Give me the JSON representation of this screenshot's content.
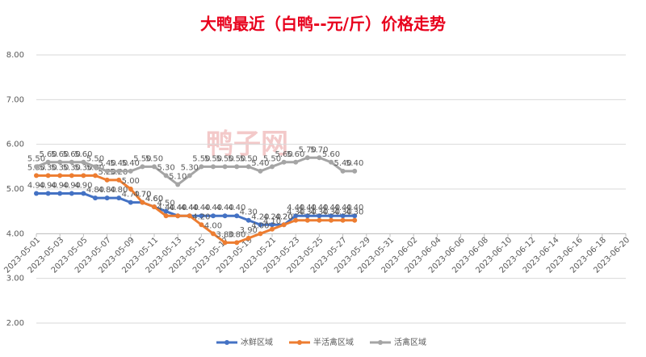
{
  "chart_data": {
    "type": "line",
    "title": "大鸭最近（白鸭--元/斤）价格走势",
    "watermark": "鸭子网",
    "x": [
      "2023-05-01",
      "2023-05-02",
      "2023-05-03",
      "2023-05-04",
      "2023-05-05",
      "2023-05-06",
      "2023-05-07",
      "2023-05-08",
      "2023-05-09",
      "2023-05-10",
      "2023-05-11",
      "2023-05-12",
      "2023-05-13",
      "2023-05-14",
      "2023-05-15",
      "2023-05-16",
      "2023-05-17",
      "2023-05-18",
      "2023-05-19",
      "2023-05-20",
      "2023-05-21",
      "2023-05-22",
      "2023-05-23",
      "2023-05-24",
      "2023-05-25",
      "2023-05-26",
      "2023-05-27",
      "2023-05-28"
    ],
    "series": [
      {
        "name": "冰鲜区域",
        "color": "#4472c4",
        "values": [
          4.9,
          4.9,
          4.9,
          4.9,
          4.9,
          4.8,
          4.8,
          4.8,
          4.7,
          4.7,
          4.6,
          4.5,
          4.4,
          4.4,
          4.4,
          4.4,
          4.4,
          4.4,
          4.3,
          4.2,
          4.2,
          4.2,
          4.4,
          4.4,
          4.4,
          4.4,
          4.4,
          4.4
        ],
        "value_labels": [
          "4.90",
          "4.90",
          "4.90",
          "4.90",
          "4.90",
          "4.80",
          "4.80",
          "4.80",
          "4.70",
          "4.70",
          "4.60",
          "4.50",
          "4.40",
          "4.40",
          "4.40",
          "4.40",
          "4.40",
          "4.40",
          "4.30",
          "4.20",
          "4.20",
          "4.20",
          "4.40",
          "4.40",
          "4.40",
          "4.40",
          "4.40",
          "4.40"
        ]
      },
      {
        "name": "半活禽区域",
        "color": "#ed7d31",
        "values": [
          5.3,
          5.3,
          5.3,
          5.3,
          5.3,
          5.3,
          5.2,
          5.2,
          5.0,
          4.7,
          4.6,
          4.4,
          4.4,
          4.4,
          4.2,
          4.0,
          3.8,
          3.8,
          3.9,
          4.0,
          4.1,
          4.2,
          4.3,
          4.3,
          4.3,
          4.3,
          4.3,
          4.3
        ],
        "value_labels": [
          "5.30",
          "5.30",
          "5.30",
          "5.30",
          "5.30",
          "5.30",
          "5.20",
          "5.20",
          "5.00",
          "4.70",
          "4.60",
          "4.40",
          "4.40",
          "4.40",
          "4.20",
          "4.00",
          "3.80",
          "3.80",
          "3.90",
          "4.00",
          "4.10",
          "4.20",
          "4.30",
          "4.30",
          "4.30",
          "4.30",
          "4.30",
          "4.30"
        ]
      },
      {
        "name": "活禽区域",
        "color": "#a5a5a5",
        "values": [
          5.5,
          5.6,
          5.6,
          5.6,
          5.6,
          5.5,
          5.4,
          5.4,
          5.4,
          5.5,
          5.5,
          5.3,
          5.1,
          5.3,
          5.5,
          5.5,
          5.5,
          5.5,
          5.5,
          5.4,
          5.5,
          5.6,
          5.6,
          5.7,
          5.7,
          5.6,
          5.4,
          5.4
        ],
        "value_labels": [
          "5.50",
          "5.60",
          "5.60",
          "5.60",
          "5.60",
          "5.50",
          "5.40",
          "5.40",
          "5.40",
          "5.50",
          "5.50",
          "5.30",
          "5.10",
          "5.30",
          "5.50",
          "5.50",
          "5.50",
          "5.50",
          "5.50",
          "5.40",
          "5.50",
          "5.60",
          "5.60",
          "5.70",
          "5.70",
          "5.60",
          "5.40",
          "5.40"
        ]
      }
    ],
    "xlim": [
      "2023-05-01",
      "2023-06-20"
    ],
    "xticks": [
      "2023-05-01",
      "2023-05-03",
      "2023-05-05",
      "2023-05-07",
      "2023-05-09",
      "2023-05-11",
      "2023-05-13",
      "2023-05-15",
      "2023-05-17",
      "2023-05-19",
      "2023-05-21",
      "2023-05-23",
      "2023-05-25",
      "2023-05-27",
      "2023-05-29",
      "2023-05-31",
      "2023-06-02",
      "2023-06-04",
      "2023-06-06",
      "2023-06-08",
      "2023-06-10",
      "2023-06-12",
      "2023-06-14",
      "2023-06-16",
      "2023-06-18",
      "2023-06-20"
    ],
    "ylim": [
      2,
      8
    ],
    "yticks": [
      {
        "value": 2,
        "label": "2.00"
      },
      {
        "value": 3,
        "label": "3.00"
      },
      {
        "value": 4,
        "label": "4.00"
      },
      {
        "value": 5,
        "label": "5.00"
      },
      {
        "value": 6,
        "label": "6.00"
      },
      {
        "value": 7,
        "label": "7.00"
      },
      {
        "value": 8,
        "label": "8.00"
      }
    ],
    "x_axis_at": 4,
    "grid": true,
    "legend": "bottom"
  }
}
